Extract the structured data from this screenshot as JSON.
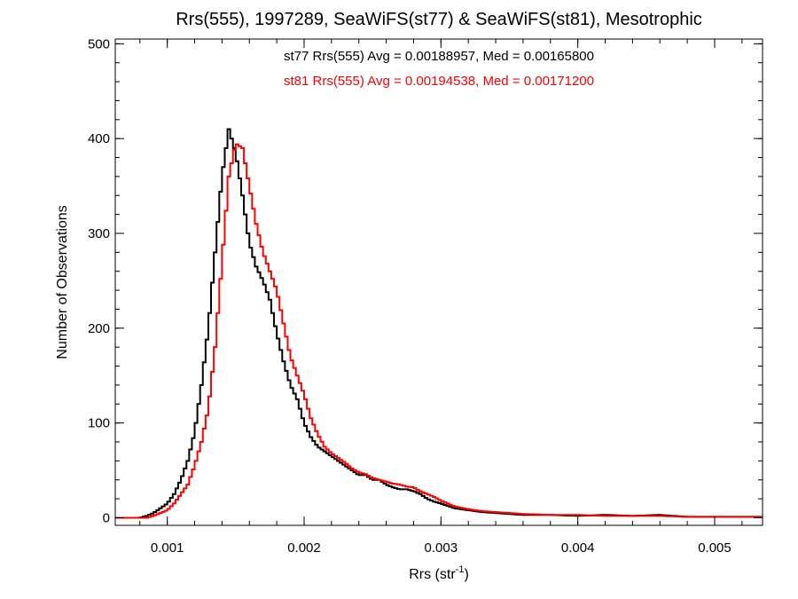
{
  "chart_data": {
    "type": "line",
    "title": "Rrs(555), 1997289, SeaWiFS(st77) & SeaWiFS(st81), Mesotrophic",
    "xlabel": "Rrs (str",
    "xlabel_sup": "-1",
    "xlabel_close": ")",
    "ylabel": "Number of Observations",
    "xlim": [
      0.00062,
      0.00535
    ],
    "ylim": [
      -8,
      505
    ],
    "x_ticks": [
      {
        "value": 0.001,
        "label": "0.001"
      },
      {
        "value": 0.002,
        "label": "0.002"
      },
      {
        "value": 0.003,
        "label": "0.003"
      },
      {
        "value": 0.004,
        "label": "0.004"
      },
      {
        "value": 0.005,
        "label": "0.005"
      }
    ],
    "y_ticks": [
      {
        "value": 0,
        "label": "0"
      },
      {
        "value": 100,
        "label": "100"
      },
      {
        "value": 200,
        "label": "200"
      },
      {
        "value": 300,
        "label": "300"
      },
      {
        "value": 400,
        "label": "400"
      },
      {
        "value": 500,
        "label": "500"
      }
    ],
    "step": "histogram",
    "bin_width": 2e-05,
    "grid": false,
    "annotations": [
      {
        "text": "st77 Rrs(555) Avg = 0.00188957, Med = 0.00165800",
        "color": "#000000"
      },
      {
        "text": "st81 Rrs(555) Avg = 0.00194538, Med = 0.00171200",
        "color": "#ff0000"
      }
    ],
    "series": [
      {
        "color": "#000000",
        "points": [
          [
            0.0008,
            0
          ],
          [
            0.00085,
            2
          ],
          [
            0.0009,
            5
          ],
          [
            0.00095,
            10
          ],
          [
            0.001,
            15
          ],
          [
            0.00105,
            25
          ],
          [
            0.0011,
            40
          ],
          [
            0.00115,
            60
          ],
          [
            0.0012,
            90
          ],
          [
            0.00125,
            140
          ],
          [
            0.0013,
            200
          ],
          [
            0.00135,
            280
          ],
          [
            0.0014,
            360
          ],
          [
            0.00145,
            410
          ],
          [
            0.0015,
            385
          ],
          [
            0.00155,
            340
          ],
          [
            0.0016,
            290
          ],
          [
            0.00165,
            265
          ],
          [
            0.0017,
            250
          ],
          [
            0.00175,
            230
          ],
          [
            0.0018,
            195
          ],
          [
            0.00185,
            165
          ],
          [
            0.0019,
            140
          ],
          [
            0.00195,
            125
          ],
          [
            0.002,
            100
          ],
          [
            0.00205,
            85
          ],
          [
            0.0021,
            75
          ],
          [
            0.00215,
            70
          ],
          [
            0.0022,
            65
          ],
          [
            0.00225,
            60
          ],
          [
            0.0023,
            55
          ],
          [
            0.00235,
            50
          ],
          [
            0.0024,
            45
          ],
          [
            0.00245,
            45
          ],
          [
            0.0025,
            40
          ],
          [
            0.00255,
            40
          ],
          [
            0.0026,
            35
          ],
          [
            0.00265,
            32
          ],
          [
            0.0027,
            30
          ],
          [
            0.00275,
            30
          ],
          [
            0.0028,
            28
          ],
          [
            0.00285,
            25
          ],
          [
            0.0029,
            20
          ],
          [
            0.00295,
            17
          ],
          [
            0.003,
            15
          ],
          [
            0.0031,
            10
          ],
          [
            0.0032,
            8
          ],
          [
            0.0033,
            6
          ],
          [
            0.0034,
            5
          ],
          [
            0.0035,
            4
          ],
          [
            0.0036,
            3
          ],
          [
            0.0038,
            3
          ],
          [
            0.004,
            2
          ],
          [
            0.0042,
            3
          ],
          [
            0.0044,
            2
          ],
          [
            0.0046,
            3
          ],
          [
            0.0048,
            1
          ],
          [
            0.005,
            1
          ],
          [
            0.0052,
            1
          ],
          [
            0.00535,
            1
          ]
        ]
      },
      {
        "color": "#ff0000",
        "points": [
          [
            0.00085,
            0
          ],
          [
            0.0009,
            2
          ],
          [
            0.00095,
            5
          ],
          [
            0.001,
            8
          ],
          [
            0.00105,
            15
          ],
          [
            0.0011,
            25
          ],
          [
            0.00115,
            35
          ],
          [
            0.0012,
            55
          ],
          [
            0.00125,
            80
          ],
          [
            0.0013,
            115
          ],
          [
            0.00135,
            180
          ],
          [
            0.0014,
            270
          ],
          [
            0.00145,
            360
          ],
          [
            0.0015,
            395
          ],
          [
            0.00155,
            390
          ],
          [
            0.0016,
            350
          ],
          [
            0.00165,
            310
          ],
          [
            0.0017,
            280
          ],
          [
            0.00175,
            260
          ],
          [
            0.0018,
            240
          ],
          [
            0.00185,
            205
          ],
          [
            0.0019,
            170
          ],
          [
            0.00195,
            150
          ],
          [
            0.002,
            130
          ],
          [
            0.00205,
            105
          ],
          [
            0.0021,
            88
          ],
          [
            0.00215,
            75
          ],
          [
            0.0022,
            68
          ],
          [
            0.00225,
            63
          ],
          [
            0.0023,
            58
          ],
          [
            0.00235,
            52
          ],
          [
            0.0024,
            48
          ],
          [
            0.00245,
            46
          ],
          [
            0.0025,
            42
          ],
          [
            0.00255,
            40
          ],
          [
            0.0026,
            38
          ],
          [
            0.00265,
            36
          ],
          [
            0.0027,
            35
          ],
          [
            0.00275,
            33
          ],
          [
            0.0028,
            32
          ],
          [
            0.00285,
            28
          ],
          [
            0.0029,
            25
          ],
          [
            0.00295,
            22
          ],
          [
            0.003,
            18
          ],
          [
            0.0031,
            12
          ],
          [
            0.0032,
            9
          ],
          [
            0.0033,
            7
          ],
          [
            0.0034,
            6
          ],
          [
            0.0035,
            5
          ],
          [
            0.0036,
            4
          ],
          [
            0.0038,
            3
          ],
          [
            0.004,
            3
          ],
          [
            0.0042,
            2
          ],
          [
            0.0044,
            2
          ],
          [
            0.0046,
            2
          ],
          [
            0.0048,
            1
          ],
          [
            0.005,
            1
          ],
          [
            0.0052,
            1
          ],
          [
            0.00535,
            1
          ]
        ]
      }
    ]
  }
}
